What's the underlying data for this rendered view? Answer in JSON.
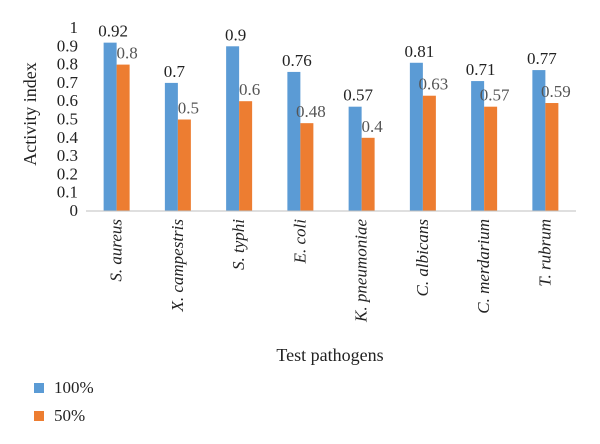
{
  "chart_data": {
    "type": "bar",
    "xlabel": "Test pathogens",
    "ylabel": "Activity index",
    "ylim": [
      0,
      1
    ],
    "yticks": [
      "0",
      "0.1",
      "0.2",
      "0.3",
      "0.4",
      "0.5",
      "0.6",
      "0.7",
      "0.8",
      "0.9",
      "1"
    ],
    "categories": [
      "S. aureus",
      "X. campestris",
      "S. typhi",
      "E. coli",
      "K. pneumoniae",
      "C. albicans",
      "C. merdarium",
      "T. rubrum"
    ],
    "series": [
      {
        "name": "100%",
        "color": "#5b9bd5",
        "values": [
          0.92,
          0.7,
          0.9,
          0.76,
          0.57,
          0.81,
          0.71,
          0.77
        ],
        "labels": [
          "0.92",
          "0.7",
          "0.9",
          "0.76",
          "0.57",
          "0.81",
          "0.71",
          "0.77"
        ],
        "label_color": "#222222"
      },
      {
        "name": "50%",
        "color": "#ed7d31",
        "values": [
          0.8,
          0.5,
          0.6,
          0.48,
          0.4,
          0.63,
          0.57,
          0.59
        ],
        "labels": [
          "0.8",
          "0.5",
          "0.6",
          "0.48",
          "0.4",
          "0.63",
          "0.57",
          "0.59"
        ],
        "label_color": "#555555"
      }
    ],
    "grid": false,
    "legend_position": "bottom-left"
  }
}
